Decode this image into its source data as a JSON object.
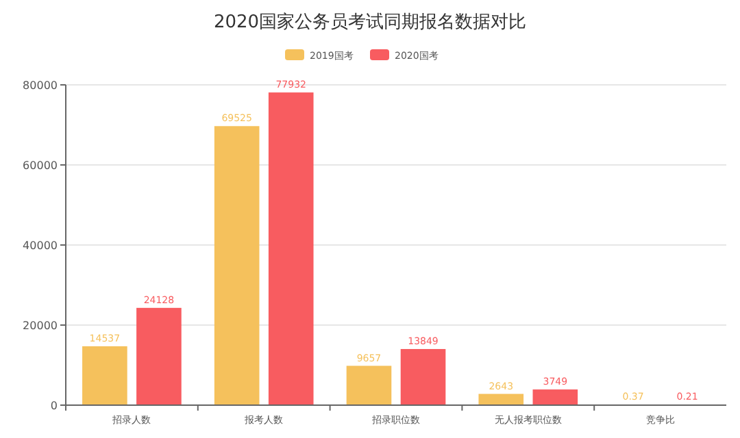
{
  "chart_data": {
    "type": "bar",
    "title": "2020国家公务员考试同期报名数据对比",
    "categories": [
      "招录人数",
      "报考人数",
      "招录职位数",
      "无人报考职位数",
      "竞争比"
    ],
    "series": [
      {
        "name": "2019国考",
        "color": "#f5c15c",
        "values": [
          14537,
          69525,
          9657,
          2643,
          0.37
        ]
      },
      {
        "name": "2020国考",
        "color": "#f85c60",
        "values": [
          24128,
          77932,
          13849,
          3749,
          0.21
        ]
      }
    ],
    "ylim": [
      0,
      80000
    ],
    "yticks": [
      0,
      20000,
      40000,
      60000,
      80000
    ],
    "grid": "y",
    "legend": "top",
    "data_labels": true
  }
}
